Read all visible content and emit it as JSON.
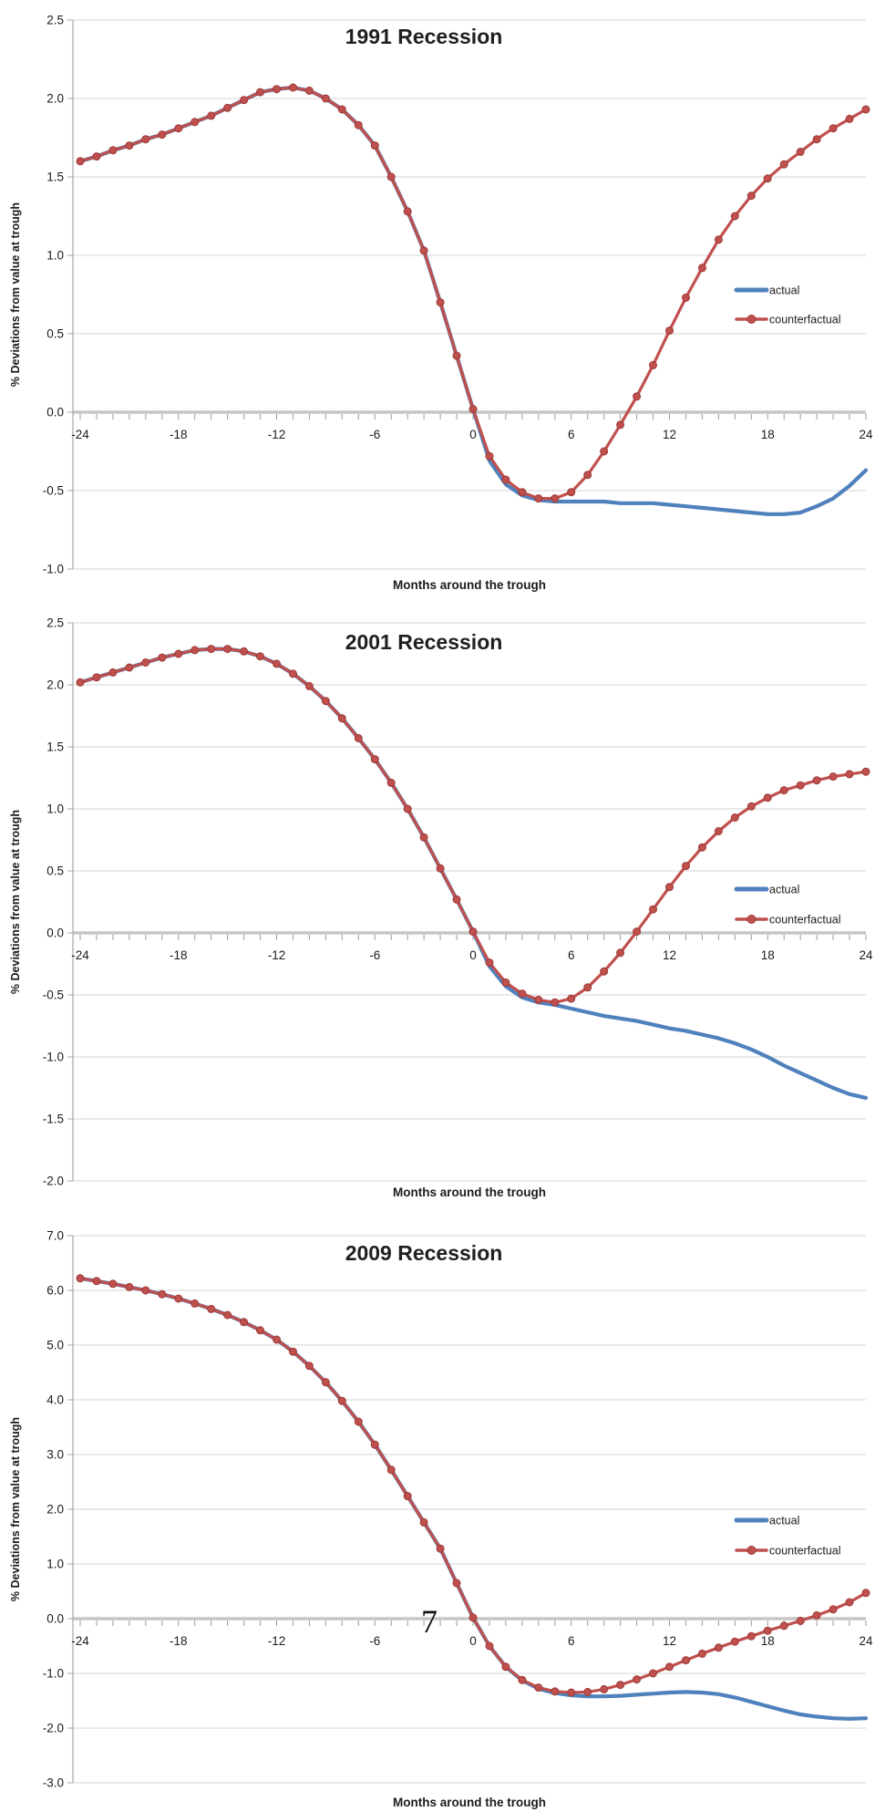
{
  "page": {
    "page_number": "7"
  },
  "legend": {
    "actual_label": "actual",
    "counterfactual_label": "counterfactual"
  },
  "colors": {
    "actual": "#4f81bd",
    "counterfactual": "#c0504d",
    "counterfactual_marker_edge": "#9c3a38",
    "gridline": "#d4d4d4",
    "zero_axis": "#c6c6c6",
    "axis_line": "#a6a6a6",
    "minor_tick": "#999999",
    "text": "#1b1b1b"
  },
  "chart_data": [
    {
      "type": "line",
      "title": "1991 Recession",
      "xlabel": "Months around the trough",
      "ylabel": "% Deviations from value at trough",
      "xlim": [
        -24,
        24
      ],
      "ylim": [
        -1.0,
        2.5
      ],
      "grid": true,
      "legend_position": "right-middle",
      "x_tick_labels": [
        "-24",
        "-18",
        "-12",
        "-6",
        "0",
        "6",
        "12",
        "18",
        "24"
      ],
      "y_tick_labels": [
        "2.5",
        "2.0",
        "1.5",
        "1.0",
        "0.5",
        "0.0",
        "-0.5",
        "-1.0"
      ],
      "x": [
        -24,
        -23,
        -22,
        -21,
        -20,
        -19,
        -18,
        -17,
        -16,
        -15,
        -14,
        -13,
        -12,
        -11,
        -10,
        -9,
        -8,
        -7,
        -6,
        -5,
        -4,
        -3,
        -2,
        -1,
        0,
        1,
        2,
        3,
        4,
        5,
        6,
        7,
        8,
        9,
        10,
        11,
        12,
        13,
        14,
        15,
        16,
        17,
        18,
        19,
        20,
        21,
        22,
        23,
        24
      ],
      "series": [
        {
          "name": "actual",
          "marker": false,
          "values": [
            1.6,
            1.63,
            1.67,
            1.7,
            1.74,
            1.77,
            1.81,
            1.85,
            1.89,
            1.94,
            1.99,
            2.04,
            2.06,
            2.07,
            2.05,
            2.0,
            1.93,
            1.83,
            1.7,
            1.5,
            1.28,
            1.03,
            0.7,
            0.36,
            0.02,
            -0.31,
            -0.46,
            -0.53,
            -0.56,
            -0.57,
            -0.57,
            -0.57,
            -0.57,
            -0.58,
            -0.58,
            -0.58,
            -0.59,
            -0.6,
            -0.61,
            -0.62,
            -0.63,
            -0.64,
            -0.65,
            -0.65,
            -0.64,
            -0.6,
            -0.55,
            -0.47,
            -0.37
          ]
        },
        {
          "name": "counterfactual",
          "marker": true,
          "values": [
            1.6,
            1.63,
            1.67,
            1.7,
            1.74,
            1.77,
            1.81,
            1.85,
            1.89,
            1.94,
            1.99,
            2.04,
            2.06,
            2.07,
            2.05,
            2.0,
            1.93,
            1.83,
            1.7,
            1.5,
            1.28,
            1.03,
            0.7,
            0.36,
            0.02,
            -0.28,
            -0.43,
            -0.51,
            -0.55,
            -0.55,
            -0.51,
            -0.4,
            -0.25,
            -0.08,
            0.1,
            0.3,
            0.52,
            0.73,
            0.92,
            1.1,
            1.25,
            1.38,
            1.49,
            1.58,
            1.66,
            1.74,
            1.81,
            1.87,
            1.93
          ]
        }
      ]
    },
    {
      "type": "line",
      "title": "2001 Recession",
      "xlabel": "Months around the trough",
      "ylabel": "% Deviations from value at trough",
      "xlim": [
        -24,
        24
      ],
      "ylim": [
        -2.0,
        2.5
      ],
      "grid": true,
      "legend_position": "right-middle",
      "x_tick_labels": [
        "-24",
        "-18",
        "-12",
        "-6",
        "0",
        "6",
        "12",
        "18",
        "24"
      ],
      "y_tick_labels": [
        "2.5",
        "2.0",
        "1.5",
        "1.0",
        "0.5",
        "0.0",
        "-0.5",
        "-1.0",
        "-1.5",
        "-2.0"
      ],
      "x": [
        -24,
        -23,
        -22,
        -21,
        -20,
        -19,
        -18,
        -17,
        -16,
        -15,
        -14,
        -13,
        -12,
        -11,
        -10,
        -9,
        -8,
        -7,
        -6,
        -5,
        -4,
        -3,
        -2,
        -1,
        0,
        1,
        2,
        3,
        4,
        5,
        6,
        7,
        8,
        9,
        10,
        11,
        12,
        13,
        14,
        15,
        16,
        17,
        18,
        19,
        20,
        21,
        22,
        23,
        24
      ],
      "series": [
        {
          "name": "actual",
          "marker": false,
          "values": [
            2.02,
            2.06,
            2.1,
            2.14,
            2.18,
            2.22,
            2.25,
            2.28,
            2.29,
            2.29,
            2.27,
            2.23,
            2.17,
            2.09,
            1.99,
            1.87,
            1.73,
            1.57,
            1.4,
            1.21,
            1.0,
            0.77,
            0.52,
            0.27,
            0.01,
            -0.27,
            -0.43,
            -0.52,
            -0.56,
            -0.58,
            -0.61,
            -0.64,
            -0.67,
            -0.69,
            -0.71,
            -0.74,
            -0.77,
            -0.79,
            -0.82,
            -0.85,
            -0.89,
            -0.94,
            -1.0,
            -1.07,
            -1.13,
            -1.19,
            -1.25,
            -1.3,
            -1.33
          ]
        },
        {
          "name": "counterfactual",
          "marker": true,
          "values": [
            2.02,
            2.06,
            2.1,
            2.14,
            2.18,
            2.22,
            2.25,
            2.28,
            2.29,
            2.29,
            2.27,
            2.23,
            2.17,
            2.09,
            1.99,
            1.87,
            1.73,
            1.57,
            1.4,
            1.21,
            1.0,
            0.77,
            0.52,
            0.27,
            0.01,
            -0.24,
            -0.4,
            -0.49,
            -0.54,
            -0.56,
            -0.53,
            -0.44,
            -0.31,
            -0.16,
            0.01,
            0.19,
            0.37,
            0.54,
            0.69,
            0.82,
            0.93,
            1.02,
            1.09,
            1.15,
            1.19,
            1.23,
            1.26,
            1.28,
            1.3
          ]
        }
      ]
    },
    {
      "type": "line",
      "title": "2009 Recession",
      "xlabel": "Months around the trough",
      "ylabel": "% Deviations from value at trough",
      "xlim": [
        -24,
        24
      ],
      "ylim": [
        -3.0,
        7.0
      ],
      "grid": true,
      "legend_position": "right-middle",
      "x_tick_labels": [
        "-24",
        "-18",
        "-12",
        "-6",
        "0",
        "6",
        "12",
        "18",
        "24"
      ],
      "y_tick_labels": [
        "7.0",
        "6.0",
        "5.0",
        "4.0",
        "3.0",
        "2.0",
        "1.0",
        "0.0",
        "-1.0",
        "-2.0",
        "-3.0"
      ],
      "x": [
        -24,
        -23,
        -22,
        -21,
        -20,
        -19,
        -18,
        -17,
        -16,
        -15,
        -14,
        -13,
        -12,
        -11,
        -10,
        -9,
        -8,
        -7,
        -6,
        -5,
        -4,
        -3,
        -2,
        -1,
        0,
        1,
        2,
        3,
        4,
        5,
        6,
        7,
        8,
        9,
        10,
        11,
        12,
        13,
        14,
        15,
        16,
        17,
        18,
        19,
        20,
        21,
        22,
        23,
        24
      ],
      "series": [
        {
          "name": "actual",
          "marker": false,
          "values": [
            6.22,
            6.17,
            6.12,
            6.06,
            6.0,
            5.93,
            5.85,
            5.76,
            5.66,
            5.55,
            5.42,
            5.27,
            5.1,
            4.88,
            4.62,
            4.32,
            3.98,
            3.6,
            3.18,
            2.72,
            2.24,
            1.76,
            1.28,
            0.65,
            0.02,
            -0.5,
            -0.88,
            -1.13,
            -1.28,
            -1.36,
            -1.4,
            -1.42,
            -1.42,
            -1.41,
            -1.39,
            -1.37,
            -1.35,
            -1.34,
            -1.35,
            -1.38,
            -1.44,
            -1.52,
            -1.6,
            -1.68,
            -1.75,
            -1.79,
            -1.82,
            -1.83,
            -1.82
          ]
        },
        {
          "name": "counterfactual",
          "marker": true,
          "values": [
            6.22,
            6.17,
            6.12,
            6.06,
            6.0,
            5.93,
            5.85,
            5.76,
            5.66,
            5.55,
            5.42,
            5.27,
            5.1,
            4.88,
            4.62,
            4.32,
            3.98,
            3.6,
            3.18,
            2.72,
            2.24,
            1.76,
            1.28,
            0.65,
            0.02,
            -0.5,
            -0.88,
            -1.12,
            -1.26,
            -1.33,
            -1.35,
            -1.34,
            -1.29,
            -1.21,
            -1.11,
            -1.0,
            -0.88,
            -0.76,
            -0.64,
            -0.53,
            -0.42,
            -0.32,
            -0.22,
            -0.13,
            -0.04,
            0.06,
            0.17,
            0.3,
            0.47
          ]
        }
      ]
    }
  ]
}
